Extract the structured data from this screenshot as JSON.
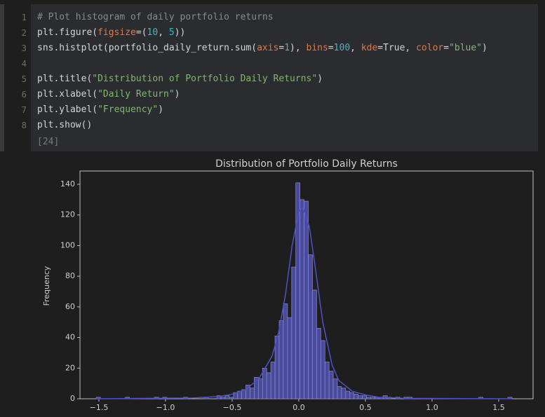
{
  "code": {
    "line_numbers": [
      1,
      2,
      3,
      4,
      5,
      6,
      7,
      8
    ],
    "lines": [
      [
        "# Plot histogram of daily portfolio returns"
      ],
      [
        "plt.figure(",
        "figsize",
        "=(",
        "10",
        ", ",
        "5",
        "))"
      ],
      [
        "sns.histplot(portfolio_daily_return.sum(",
        "axis",
        "=",
        "1",
        "), ",
        "bins",
        "=",
        "100",
        ", ",
        "kde",
        "=True, ",
        "color",
        "=",
        "\"blue\"",
        ")"
      ],
      [],
      [
        "plt.title(",
        "\"Distribution of Portfolio Daily Returns\"",
        ")"
      ],
      [
        "plt.xlabel(",
        "\"Daily Return\"",
        ")"
      ],
      [
        "plt.ylabel(",
        "\"Frequency\"",
        ")"
      ],
      [
        "plt.show()"
      ]
    ],
    "execution_count": "[24]"
  },
  "chart_data": {
    "type": "histogram",
    "title": "Distribution of Portfolio Daily Returns",
    "y_label": "Frequency",
    "color": "#4a4a9c",
    "edge_color": "#8c8cc8",
    "kde_color": "#5050c8",
    "bins": [
      -1.52,
      -1.4888,
      -1.4576,
      -1.4264,
      -1.3952,
      -1.364,
      -1.3328,
      -1.3016,
      -1.2704,
      -1.2392,
      -1.208,
      -1.1768,
      -1.1456,
      -1.1144,
      -1.0832,
      -1.052,
      -1.0208,
      -0.9896,
      -0.9584,
      -0.9272,
      -0.896,
      -0.8648,
      -0.8336,
      -0.8024,
      -0.7712,
      -0.74,
      -0.7088,
      -0.6776,
      -0.6464,
      -0.6152,
      -0.584,
      -0.5528,
      -0.5216,
      -0.4904,
      -0.4592,
      -0.428,
      -0.3968,
      -0.3656,
      -0.3344,
      -0.3032,
      -0.272,
      -0.2408,
      -0.2096,
      -0.1784,
      -0.1472,
      -0.116,
      -0.0848,
      -0.0536,
      -0.0224,
      0.0088,
      0.04,
      0.0712,
      0.1024,
      0.1336,
      0.1648,
      0.196,
      0.2272,
      0.2584,
      0.2896,
      0.3208,
      0.352,
      0.3832,
      0.4144,
      0.4456,
      0.4768,
      0.508,
      0.5392,
      0.5704,
      0.6016,
      0.6328,
      0.664,
      0.6952,
      0.7264,
      0.7576,
      0.7888,
      0.82,
      0.8512,
      0.8824,
      0.9136,
      0.9448,
      0.976,
      1.0072,
      1.0384,
      1.0696,
      1.1008,
      1.132,
      1.1632,
      1.1944,
      1.2256,
      1.2568,
      1.288,
      1.3192,
      1.3504,
      1.3816,
      1.4128,
      1.444,
      1.4752,
      1.5064,
      1.5376,
      1.5688,
      1.6
    ],
    "values": [
      1,
      0,
      0,
      0,
      0,
      0,
      0,
      1,
      0,
      0,
      0,
      0,
      0,
      0,
      1,
      0,
      1,
      0,
      0,
      0,
      0,
      1,
      0,
      0,
      0,
      0,
      1,
      0,
      0,
      2,
      1,
      2,
      1,
      4,
      5,
      6,
      9,
      7,
      14,
      13,
      20,
      17,
      24,
      41,
      51,
      62,
      53,
      86,
      141,
      130,
      129,
      94,
      71,
      46,
      38,
      24,
      18,
      13,
      8,
      7,
      5,
      4,
      3,
      2,
      2,
      1,
      1,
      1,
      1,
      2,
      1,
      0,
      1,
      0,
      1,
      1,
      0,
      0,
      0,
      0,
      0,
      0,
      0,
      0,
      0,
      0,
      0,
      0,
      0,
      0,
      0,
      0,
      1,
      0,
      0,
      0,
      0,
      0,
      0,
      1
    ],
    "kde": {
      "x": [
        -1.52,
        -0.8,
        -0.6,
        -0.5,
        -0.4,
        -0.3,
        -0.2,
        -0.15,
        -0.1,
        -0.05,
        0,
        0.03,
        0.08,
        0.12,
        0.18,
        0.25,
        0.3,
        0.4,
        0.5,
        0.6,
        0.8,
        1.6
      ],
      "values": [
        0,
        0.5,
        1.5,
        3,
        6,
        13,
        28,
        44,
        68,
        100,
        122,
        125,
        112,
        88,
        50,
        22,
        12,
        5,
        2.5,
        1,
        0.3,
        0
      ]
    },
    "xlim": [
      -1.642,
      1.758
    ],
    "ylim": [
      0,
      148.7
    ],
    "xticks": [
      {
        "value": -1.5,
        "label": "−1.5"
      },
      {
        "value": -1,
        "label": "−1.0"
      },
      {
        "value": -0.5,
        "label": "−0.5"
      },
      {
        "value": 0,
        "label": "0.0"
      },
      {
        "value": 0.5,
        "label": "0.5"
      },
      {
        "value": 1,
        "label": "1.0"
      },
      {
        "value": 1.5,
        "label": "1.5"
      }
    ],
    "yticks": [
      0,
      20,
      40,
      60,
      80,
      100,
      120,
      140
    ],
    "grid": false
  }
}
